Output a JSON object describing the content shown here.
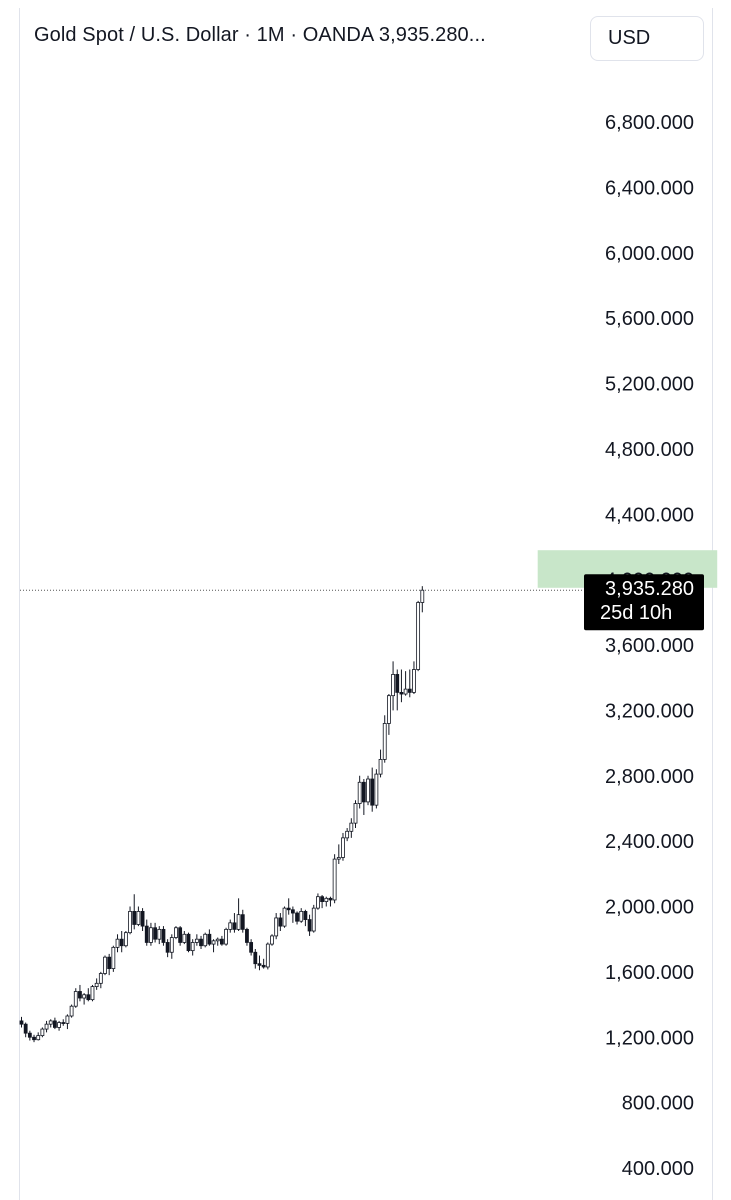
{
  "header": {
    "title": "Gold Spot / U.S. Dollar · 1M · OANDA  3,935.280..."
  },
  "currency_button": {
    "label": "USD"
  },
  "colors": {
    "up": "#ffffff",
    "down": "#131722",
    "wick": "#131722",
    "target_zone": "#c8e6c9",
    "price_label_bg": "#000000",
    "price_line": "#555555"
  },
  "chart_data": {
    "type": "candlestick",
    "title": "Gold Spot / U.S. Dollar · 1M · OANDA",
    "interval": "1M",
    "source": "OANDA",
    "ylim": [
      150,
      7020
    ],
    "y_axis_position": "right",
    "y_ticks": [
      400,
      800,
      1200,
      1600,
      2000,
      2400,
      2800,
      3200,
      3600,
      4000,
      4400,
      4800,
      5200,
      5600,
      6000,
      6400,
      6800
    ],
    "y_tick_labels": [
      "400.000",
      "800.000",
      "1,200.000",
      "1,600.000",
      "2,000.000",
      "2,400.000",
      "2,800.000",
      "3,200.000",
      "3,600.000",
      "4,000.000",
      "4,400.000",
      "4,800.000",
      "5,200.000",
      "5,600.000",
      "6,000.000",
      "6,400.000",
      "6,800.000"
    ],
    "current_price": 3935.28,
    "current_price_label": "3,935.280",
    "countdown_label": "25d 10h",
    "target_zone": {
      "start_index": 124,
      "end_index": 167,
      "low": 3950,
      "high": 4180
    },
    "candles": [
      [
        1300,
        1325,
        1260,
        1280
      ],
      [
        1280,
        1290,
        1200,
        1225
      ],
      [
        1225,
        1240,
        1180,
        1200
      ],
      [
        1200,
        1215,
        1170,
        1185
      ],
      [
        1185,
        1230,
        1180,
        1210
      ],
      [
        1210,
        1260,
        1200,
        1250
      ],
      [
        1250,
        1300,
        1230,
        1280
      ],
      [
        1280,
        1310,
        1260,
        1300
      ],
      [
        1300,
        1320,
        1250,
        1260
      ],
      [
        1260,
        1300,
        1240,
        1290
      ],
      [
        1290,
        1310,
        1270,
        1285
      ],
      [
        1285,
        1340,
        1250,
        1330
      ],
      [
        1330,
        1400,
        1320,
        1390
      ],
      [
        1390,
        1500,
        1380,
        1480
      ],
      [
        1480,
        1520,
        1420,
        1440
      ],
      [
        1440,
        1470,
        1400,
        1460
      ],
      [
        1460,
        1500,
        1420,
        1430
      ],
      [
        1430,
        1520,
        1420,
        1510
      ],
      [
        1510,
        1560,
        1490,
        1530
      ],
      [
        1530,
        1600,
        1500,
        1590
      ],
      [
        1590,
        1700,
        1580,
        1690
      ],
      [
        1690,
        1710,
        1580,
        1620
      ],
      [
        1620,
        1760,
        1600,
        1750
      ],
      [
        1750,
        1830,
        1720,
        1800
      ],
      [
        1800,
        1850,
        1720,
        1760
      ],
      [
        1760,
        1850,
        1750,
        1840
      ],
      [
        1840,
        2000,
        1830,
        1970
      ],
      [
        1970,
        2075,
        1860,
        1890
      ],
      [
        1890,
        2000,
        1880,
        1970
      ],
      [
        1970,
        1990,
        1850,
        1880
      ],
      [
        1880,
        1920,
        1760,
        1780
      ],
      [
        1780,
        1900,
        1760,
        1870
      ],
      [
        1870,
        1900,
        1780,
        1800
      ],
      [
        1800,
        1880,
        1770,
        1860
      ],
      [
        1860,
        1880,
        1760,
        1780
      ],
      [
        1780,
        1800,
        1690,
        1720
      ],
      [
        1720,
        1830,
        1680,
        1810
      ],
      [
        1810,
        1880,
        1800,
        1870
      ],
      [
        1870,
        1880,
        1760,
        1780
      ],
      [
        1780,
        1850,
        1770,
        1830
      ],
      [
        1830,
        1840,
        1720,
        1730
      ],
      [
        1730,
        1800,
        1700,
        1780
      ],
      [
        1780,
        1830,
        1760,
        1800
      ],
      [
        1800,
        1820,
        1740,
        1760
      ],
      [
        1760,
        1840,
        1750,
        1830
      ],
      [
        1830,
        1860,
        1760,
        1770
      ],
      [
        1770,
        1800,
        1720,
        1790
      ],
      [
        1790,
        1810,
        1760,
        1800
      ],
      [
        1800,
        1820,
        1760,
        1770
      ],
      [
        1770,
        1870,
        1760,
        1860
      ],
      [
        1860,
        1920,
        1840,
        1900
      ],
      [
        1900,
        1960,
        1840,
        1860
      ],
      [
        1860,
        2050,
        1850,
        1950
      ],
      [
        1950,
        1980,
        1840,
        1860
      ],
      [
        1860,
        1870,
        1760,
        1780
      ],
      [
        1780,
        1800,
        1700,
        1720
      ],
      [
        1720,
        1740,
        1620,
        1650
      ],
      [
        1650,
        1700,
        1610,
        1640
      ],
      [
        1640,
        1680,
        1620,
        1630
      ],
      [
        1630,
        1780,
        1615,
        1770
      ],
      [
        1770,
        1830,
        1760,
        1820
      ],
      [
        1820,
        1960,
        1800,
        1930
      ],
      [
        1930,
        1960,
        1850,
        1880
      ],
      [
        1880,
        2000,
        1870,
        1990
      ],
      [
        1990,
        2050,
        1950,
        1980
      ],
      [
        1980,
        2000,
        1900,
        1960
      ],
      [
        1960,
        1970,
        1890,
        1910
      ],
      [
        1910,
        1990,
        1900,
        1970
      ],
      [
        1970,
        1980,
        1880,
        1920
      ],
      [
        1920,
        1950,
        1820,
        1850
      ],
      [
        1850,
        2010,
        1840,
        1990
      ],
      [
        1990,
        2080,
        1980,
        2060
      ],
      [
        2060,
        2070,
        1990,
        2030
      ],
      [
        2030,
        2060,
        2000,
        2050
      ],
      [
        2050,
        2060,
        2000,
        2040
      ],
      [
        2040,
        2320,
        2020,
        2290
      ],
      [
        2290,
        2380,
        2260,
        2300
      ],
      [
        2300,
        2450,
        2280,
        2420
      ],
      [
        2420,
        2480,
        2400,
        2460
      ],
      [
        2460,
        2540,
        2420,
        2510
      ],
      [
        2510,
        2650,
        2480,
        2630
      ],
      [
        2630,
        2800,
        2600,
        2760
      ],
      [
        2760,
        2780,
        2560,
        2640
      ],
      [
        2640,
        2800,
        2620,
        2780
      ],
      [
        2780,
        2850,
        2580,
        2620
      ],
      [
        2620,
        2840,
        2600,
        2810
      ],
      [
        2810,
        2960,
        2790,
        2900
      ],
      [
        2900,
        3170,
        2880,
        3120
      ],
      [
        3120,
        3300,
        3050,
        3290
      ],
      [
        3290,
        3500,
        3200,
        3420
      ],
      [
        3420,
        3450,
        3200,
        3310
      ],
      [
        3310,
        3450,
        3250,
        3300
      ],
      [
        3300,
        3440,
        3290,
        3330
      ],
      [
        3330,
        3450,
        3280,
        3310
      ],
      [
        3310,
        3500,
        3300,
        3450
      ],
      [
        3450,
        3870,
        3440,
        3860
      ],
      [
        3860,
        3960,
        3800,
        3935.28
      ]
    ]
  }
}
